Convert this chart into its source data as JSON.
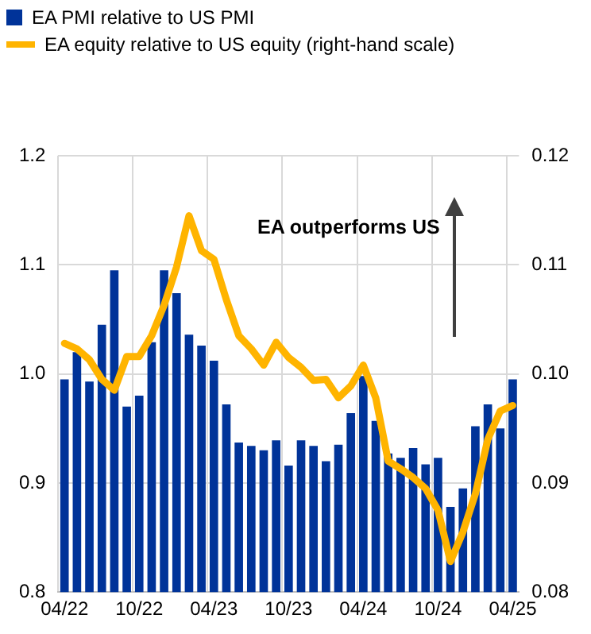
{
  "chart_data": {
    "type": "bar",
    "categories": [
      "04/22",
      null,
      null,
      null,
      null,
      null,
      "10/22",
      null,
      null,
      null,
      null,
      null,
      "04/23",
      null,
      null,
      null,
      null,
      null,
      "10/23",
      null,
      null,
      null,
      null,
      null,
      "04/24",
      null,
      null,
      null,
      null,
      null,
      "10/24",
      null,
      null,
      null,
      null,
      null,
      "04/25"
    ],
    "series": [
      {
        "name": "EA PMI relative to US PMI",
        "color": "#003399",
        "values": [
          0.995,
          1.02,
          0.993,
          1.045,
          1.095,
          0.97,
          0.98,
          1.029,
          1.095,
          1.074,
          1.036,
          1.026,
          1.012,
          0.972,
          0.937,
          0.934,
          0.93,
          0.939,
          0.916,
          0.939,
          0.934,
          0.92,
          0.935,
          0.964,
          0.998,
          0.957,
          0.927,
          0.923,
          0.932,
          0.917,
          0.923,
          0.878,
          0.895,
          0.952,
          0.972,
          0.95,
          0.995
        ]
      },
      {
        "name": "EA equity relative to US equity (right-hand scale)",
        "type": "line",
        "axis": "y2",
        "color": "#ffb400",
        "values": [
          0.1028,
          0.1023,
          0.1013,
          0.0995,
          0.0985,
          0.1016,
          0.1016,
          0.1035,
          0.1063,
          0.1098,
          0.1145,
          0.1113,
          0.1105,
          0.1068,
          0.1035,
          0.1023,
          0.1008,
          0.1029,
          0.1015,
          0.1006,
          0.0994,
          0.0995,
          0.0978,
          0.0989,
          0.1008,
          0.0978,
          0.092,
          0.0913,
          0.0905,
          0.0895,
          0.0875,
          0.0828,
          0.0855,
          0.089,
          0.094,
          0.0966,
          0.0971
        ]
      }
    ],
    "ylim": [
      0.8,
      1.2
    ],
    "yticks": [
      0.8,
      0.9,
      {
        "value": 1,
        "label": "1.0"
      },
      1.1,
      1.2
    ],
    "y2lim": [
      0.08,
      0.12
    ],
    "y2ticks": [
      0.08,
      0.09,
      {
        "value": 0.1,
        "label": "0.10"
      },
      0.11,
      0.12
    ],
    "grid": true,
    "legend": "top left",
    "marker": "none",
    "line_style": "solid",
    "annotations": [
      "EA outperforms US"
    ]
  }
}
